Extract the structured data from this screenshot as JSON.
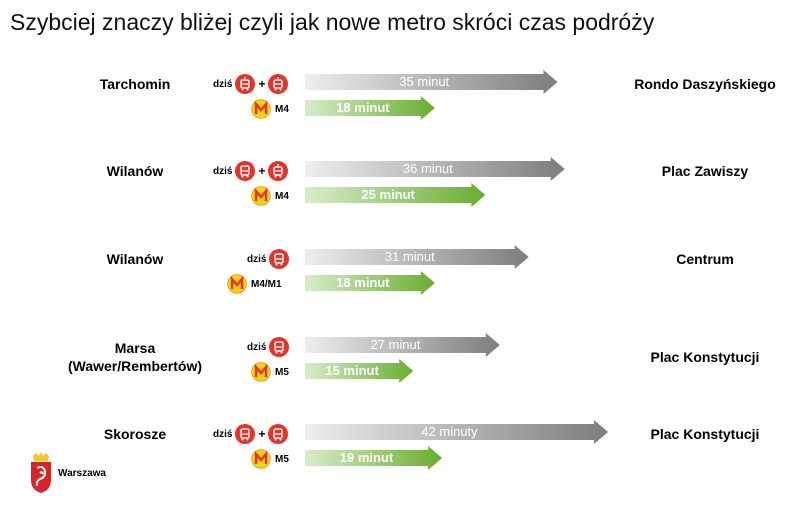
{
  "title": "Szybciej znaczy bliżej czyli jak nowe metro skróci czas podróży",
  "today_label": "dziś",
  "plus_sign": "+",
  "logo_text": "Warszawa",
  "colors": {
    "gray_arrow": "#9a9a9a",
    "green_arrow": "#6aad2f",
    "transit_red": "#e5332a",
    "metro_yellow": "#f7d117"
  },
  "chart_data": {
    "type": "bar",
    "orientation": "horizontal",
    "unit": "minut",
    "series": [
      {
        "key": "today",
        "color": "#9a9a9a"
      },
      {
        "key": "metro",
        "color": "#6aad2f"
      }
    ],
    "routes": [
      {
        "origin": "Tarchomin",
        "destination": "Rondo Daszyńskiego",
        "today_modes": [
          "tram",
          "tram"
        ],
        "today_minutes": 35,
        "today_text": "35 minut",
        "metro_line": "M4",
        "metro_minutes": 18,
        "metro_text": "18 minut"
      },
      {
        "origin": "Wilanów",
        "destination": "Plac Zawiszy",
        "today_modes": [
          "bus",
          "tram"
        ],
        "today_minutes": 36,
        "today_text": "36 minut",
        "metro_line": "M4",
        "metro_minutes": 25,
        "metro_text": "25 minut"
      },
      {
        "origin": "Wilanów",
        "destination": "Centrum",
        "today_modes": [
          "bus"
        ],
        "today_minutes": 31,
        "today_text": "31 minut",
        "metro_line": "M4/M1",
        "metro_minutes": 18,
        "metro_text": "18 minut"
      },
      {
        "origin": "Marsa\n(Wawer/Rembertów)",
        "destination": "Plac Konstytucji",
        "today_modes": [
          "bus"
        ],
        "today_minutes": 27,
        "today_text": "27 minut",
        "metro_line": "M5",
        "metro_minutes": 15,
        "metro_text": "15 minut"
      },
      {
        "origin": "Skorosze",
        "destination": "Plac Konstytucji",
        "today_modes": [
          "bus",
          "bus"
        ],
        "today_minutes": 42,
        "today_text": "42 minuty",
        "metro_line": "M5",
        "metro_minutes": 19,
        "metro_text": "19 minut"
      }
    ]
  }
}
